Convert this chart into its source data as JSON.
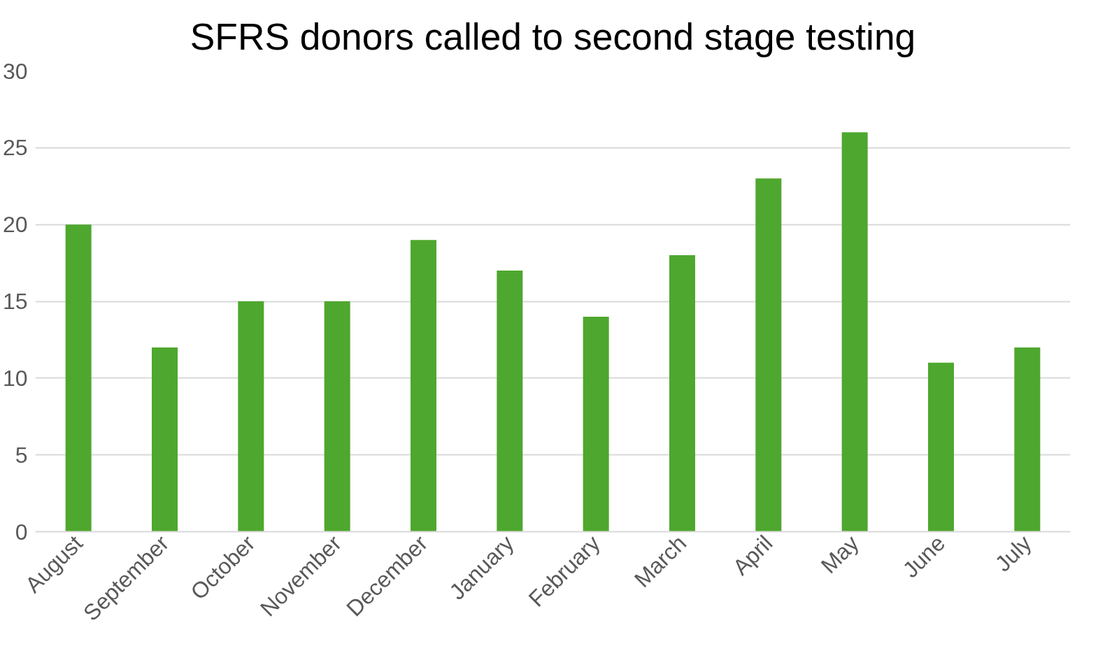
{
  "chart_data": {
    "type": "bar",
    "title": "SFRS donors called to second stage testing",
    "categories": [
      "August",
      "September",
      "October",
      "November",
      "December",
      "January",
      "February",
      "March",
      "April",
      "May",
      "June",
      "July"
    ],
    "values": [
      20,
      12,
      15,
      15,
      19,
      17,
      14,
      18,
      23,
      26,
      11,
      12
    ],
    "color": "#4ea72e",
    "ylim": [
      0,
      30
    ],
    "yticks": [
      0,
      5,
      10,
      15,
      20,
      25,
      30
    ],
    "grid": "y"
  }
}
